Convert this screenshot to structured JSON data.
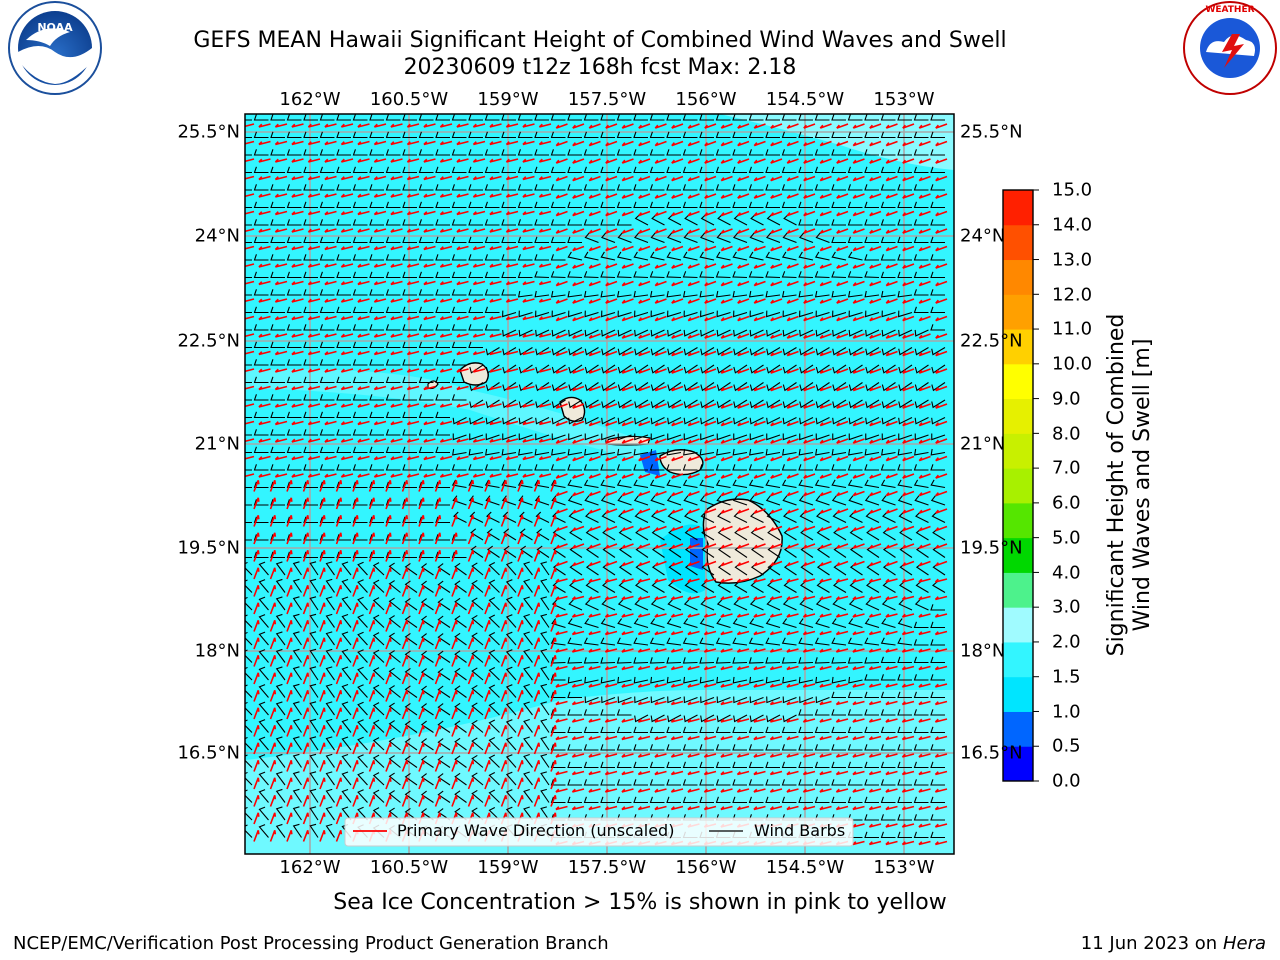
{
  "title_line1": "GEFS MEAN Hawaii Significant Height of Combined Wind Waves and Swell",
  "title_line2": "20230609 t12z 168h fcst   Max: 2.18",
  "lon_ticks": [
    "162°W",
    "160.5°W",
    "159°W",
    "157.5°W",
    "156°W",
    "154.5°W",
    "153°W"
  ],
  "lat_ticks": [
    "25.5°N",
    "24°N",
    "22.5°N",
    "21°N",
    "19.5°N",
    "18°N",
    "16.5°N"
  ],
  "legend": {
    "wave_direction": "Primary Wave Direction (unscaled)",
    "wind_barbs": "Wind Barbs"
  },
  "colorbar": {
    "label_line1": "Significant Height of Combined",
    "label_line2": "Wind Waves and Swell [m]",
    "ticks": [
      "15.0",
      "14.0",
      "13.0",
      "12.0",
      "11.0",
      "10.0",
      "9.0",
      "8.0",
      "7.0",
      "6.0",
      "5.0",
      "4.0",
      "3.0",
      "2.0",
      "1.5",
      "1.0",
      "0.5",
      "0.0"
    ],
    "colors_bottom_to_top": [
      "#0000ff",
      "#0066ff",
      "#00e5ff",
      "#33f5ff",
      "#a0fbff",
      "#4df28c",
      "#00d800",
      "#55e600",
      "#a8f000",
      "#c8f000",
      "#e6f000",
      "#ffff00",
      "#ffd000",
      "#ffa000",
      "#ff8800",
      "#ff5000",
      "#ff2000"
    ]
  },
  "ice_note": "Sea Ice Concentration > 15% is shown in pink to yellow",
  "footer_left": "NCEP/EMC/Verification Post Processing Product Generation Branch",
  "footer_right_date": "11 Jun 2023 on",
  "footer_right_host": "Hera",
  "logos": {
    "left": "NOAA",
    "right": "NATIONAL WEATHER SERVICE"
  },
  "colors": {
    "sea": "#33f5ff",
    "sea_light": "#a0fbff",
    "land": "#efeadb",
    "wave_arrow": "#ff0000",
    "barb": "#000000"
  }
}
